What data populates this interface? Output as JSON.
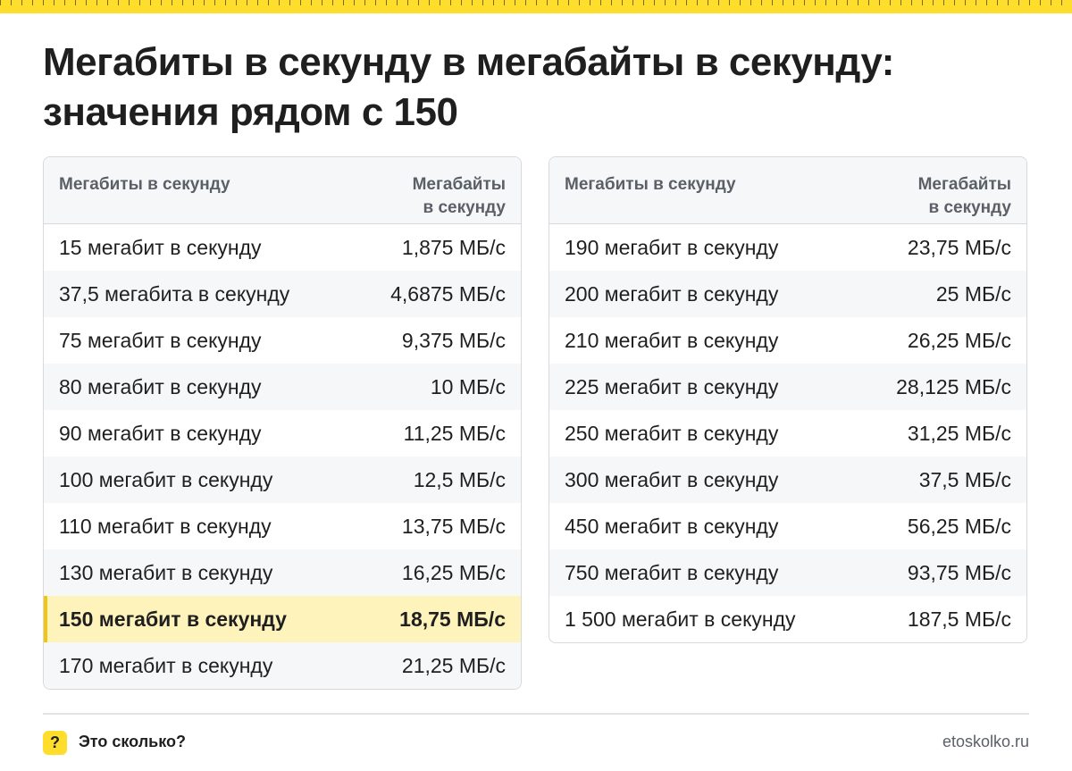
{
  "title": "Мегабиты в секунду в мегабайты в секунду: значения рядом с 150",
  "tables": [
    {
      "header": {
        "col1": "Мегабиты в секунду",
        "col2_line1": "Мегабайты",
        "col2_line2": "в секунду"
      },
      "rows": [
        {
          "mbit": "15 мегабит в секунду",
          "mbyte": "1,875 МБ/с"
        },
        {
          "mbit": "37,5 мегабита в секунду",
          "mbyte": "4,6875 МБ/с"
        },
        {
          "mbit": "75 мегабит в секунду",
          "mbyte": "9,375 МБ/с"
        },
        {
          "mbit": "80 мегабит в секунду",
          "mbyte": "10 МБ/с"
        },
        {
          "mbit": "90 мегабит в секунду",
          "mbyte": "11,25 МБ/с"
        },
        {
          "mbit": "100 мегабит в секунду",
          "mbyte": "12,5 МБ/с"
        },
        {
          "mbit": "110 мегабит в секунду",
          "mbyte": "13,75 МБ/с"
        },
        {
          "mbit": "130 мегабит в секунду",
          "mbyte": "16,25 МБ/с"
        },
        {
          "mbit": "150 мегабит в секунду",
          "mbyte": "18,75 МБ/с",
          "highlighted": true
        },
        {
          "mbit": "170 мегабит в секунду",
          "mbyte": "21,25 МБ/с"
        }
      ]
    },
    {
      "header": {
        "col1": "Мегабиты в секунду",
        "col2_line1": "Мегабайты",
        "col2_line2": "в секунду"
      },
      "rows": [
        {
          "mbit": "190 мегабит в секунду",
          "mbyte": "23,75 МБ/с"
        },
        {
          "mbit": "200 мегабит в секунду",
          "mbyte": "25 МБ/с"
        },
        {
          "mbit": "210 мегабит в секунду",
          "mbyte": "26,25 МБ/с"
        },
        {
          "mbit": "225 мегабит в секунду",
          "mbyte": "28,125 МБ/с"
        },
        {
          "mbit": "250 мегабит в секунду",
          "mbyte": "31,25 МБ/с"
        },
        {
          "mbit": "300 мегабит в секунду",
          "mbyte": "37,5 МБ/с"
        },
        {
          "mbit": "450 мегабит в секунду",
          "mbyte": "56,25 МБ/с"
        },
        {
          "mbit": "750 мегабит в секунду",
          "mbyte": "93,75 МБ/с"
        },
        {
          "mbit": "1 500 мегабит в секунду",
          "mbyte": "187,5 МБ/с"
        }
      ]
    }
  ],
  "footer": {
    "logo_symbol": "?",
    "name": "Это сколько?",
    "site": "etoskolko.ru"
  },
  "colors": {
    "accent_yellow": "#ffdd2d",
    "highlight_row": "#fff3bc",
    "header_bg": "#f6f7f8"
  }
}
